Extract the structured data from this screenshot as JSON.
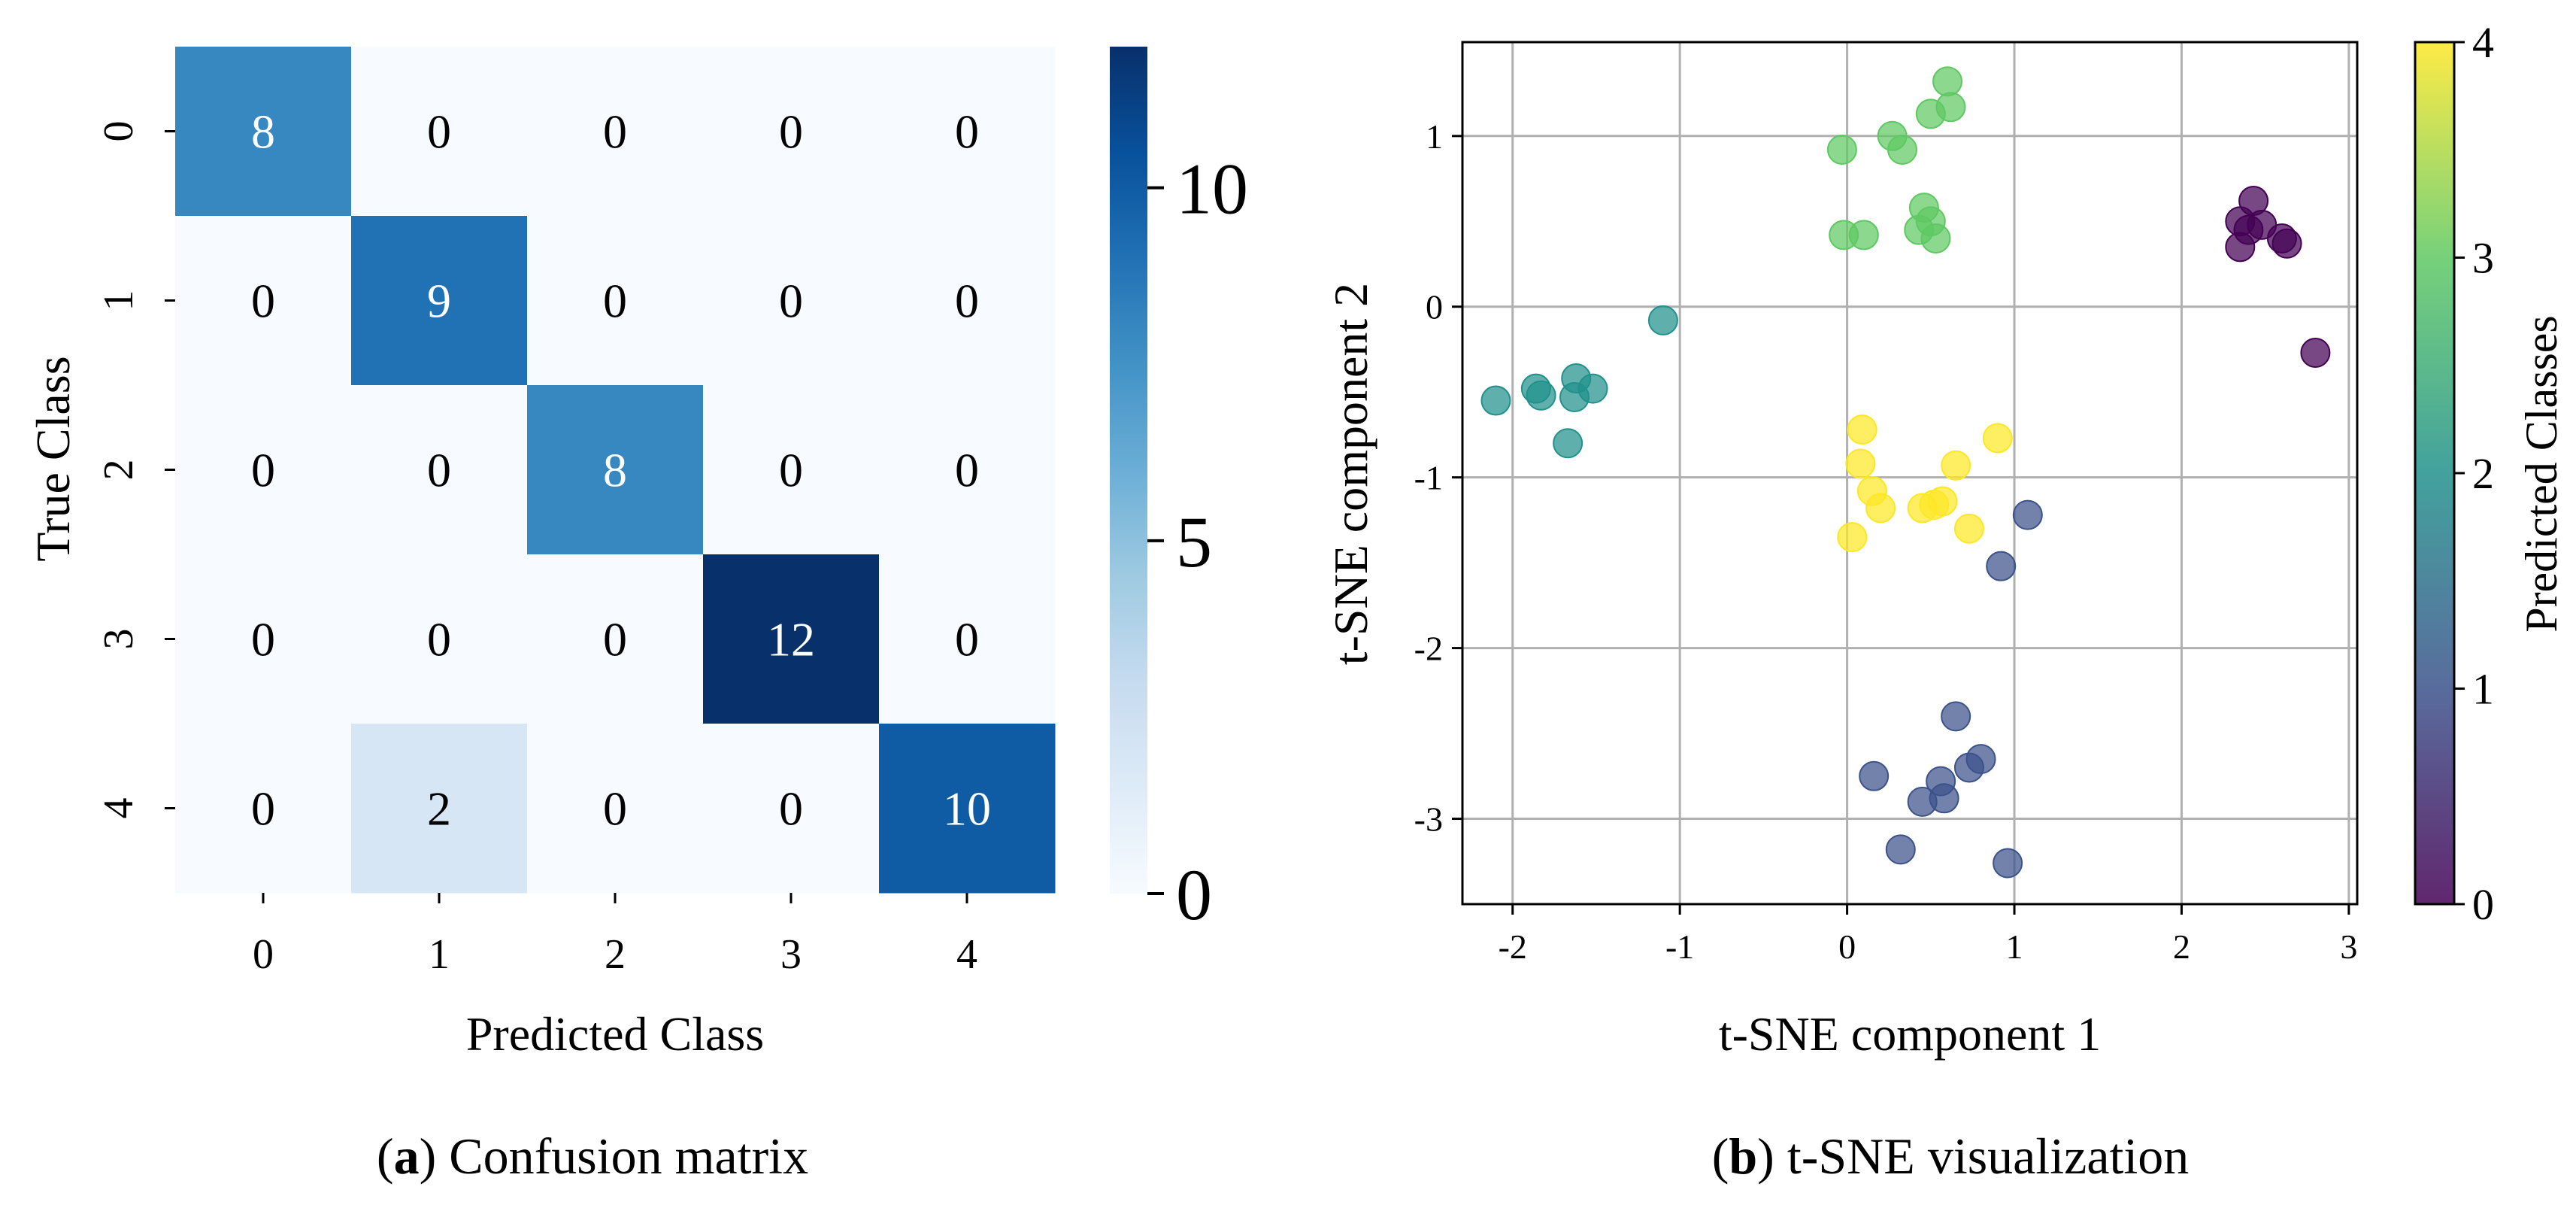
{
  "chart_data": [
    {
      "type": "heatmap",
      "title": "",
      "xlabel": "Predicted Class",
      "ylabel": "True Class",
      "x_categories": [
        "0",
        "1",
        "2",
        "3",
        "4"
      ],
      "y_categories": [
        "0",
        "1",
        "2",
        "3",
        "4"
      ],
      "matrix": [
        [
          8,
          0,
          0,
          0,
          0
        ],
        [
          0,
          9,
          0,
          0,
          0
        ],
        [
          0,
          0,
          8,
          0,
          0
        ],
        [
          0,
          0,
          0,
          12,
          0
        ],
        [
          0,
          2,
          0,
          0,
          10
        ]
      ],
      "colorbar": {
        "min": 0,
        "max": 12,
        "ticks": [
          0,
          5,
          10
        ],
        "tick_labels": [
          "0",
          "5",
          "10"
        ],
        "colormap": "Blues"
      },
      "caption": {
        "letter": "a",
        "text": "Confusion matrix"
      }
    },
    {
      "type": "scatter",
      "title": "",
      "xlabel": "t-SNE component 1",
      "ylabel": "t-SNE component 2",
      "xlim": [
        -2.3,
        3.05
      ],
      "ylim": [
        -3.5,
        1.55
      ],
      "xticks": [
        -2,
        -1,
        0,
        1,
        2,
        3
      ],
      "xtick_labels": [
        "-2",
        "-1",
        "0",
        "1",
        "2",
        "3"
      ],
      "yticks": [
        -3,
        -2,
        -1,
        0,
        1
      ],
      "ytick_labels": [
        "-3",
        "-2",
        "-1",
        "0",
        "1"
      ],
      "grid": true,
      "colorbar": {
        "label": "Predicted Classes",
        "min": 0,
        "max": 4,
        "ticks": [
          0,
          1,
          2,
          3,
          4
        ],
        "tick_labels": [
          "0",
          "1",
          "2",
          "3",
          "4"
        ],
        "colormap": "viridis"
      },
      "series": [
        {
          "name": "0",
          "color": "#440154",
          "points": [
            [
              2.35,
              0.5
            ],
            [
              2.43,
              0.62
            ],
            [
              2.4,
              0.45
            ],
            [
              2.48,
              0.48
            ],
            [
              2.35,
              0.35
            ],
            [
              2.6,
              0.4
            ],
            [
              2.63,
              0.37
            ],
            [
              2.8,
              -0.27
            ]
          ]
        },
        {
          "name": "1",
          "color": "#3b528b",
          "points": [
            [
              0.65,
              -2.4
            ],
            [
              0.16,
              -2.75
            ],
            [
              0.56,
              -2.78
            ],
            [
              0.73,
              -2.7
            ],
            [
              0.8,
              -2.65
            ],
            [
              0.45,
              -2.9
            ],
            [
              0.58,
              -2.88
            ],
            [
              0.32,
              -3.18
            ],
            [
              0.96,
              -3.26
            ],
            [
              1.08,
              -1.22
            ],
            [
              0.92,
              -1.52
            ]
          ]
        },
        {
          "name": "2",
          "color": "#21918c",
          "points": [
            [
              -2.1,
              -0.55
            ],
            [
              -1.86,
              -0.48
            ],
            [
              -1.83,
              -0.52
            ],
            [
              -1.62,
              -0.42
            ],
            [
              -1.63,
              -0.53
            ],
            [
              -1.52,
              -0.48
            ],
            [
              -1.67,
              -0.8
            ],
            [
              -1.1,
              -0.08
            ]
          ]
        },
        {
          "name": "3",
          "color": "#5ec962",
          "points": [
            [
              0.6,
              1.32
            ],
            [
              0.5,
              1.13
            ],
            [
              0.62,
              1.17
            ],
            [
              0.27,
              1.0
            ],
            [
              0.33,
              0.92
            ],
            [
              -0.03,
              0.92
            ],
            [
              0.46,
              0.58
            ],
            [
              0.5,
              0.5
            ],
            [
              0.43,
              0.45
            ],
            [
              0.53,
              0.4
            ],
            [
              -0.02,
              0.42
            ],
            [
              0.1,
              0.42
            ]
          ]
        },
        {
          "name": "4",
          "color": "#fde725",
          "points": [
            [
              0.09,
              -0.72
            ],
            [
              0.08,
              -0.92
            ],
            [
              0.15,
              -1.08
            ],
            [
              0.2,
              -1.18
            ],
            [
              0.52,
              -1.16
            ],
            [
              0.57,
              -1.14
            ],
            [
              0.03,
              -1.35
            ],
            [
              0.45,
              -1.18
            ],
            [
              0.73,
              -1.3
            ],
            [
              0.65,
              -0.93
            ],
            [
              0.9,
              -0.77
            ]
          ]
        }
      ],
      "caption": {
        "letter": "b",
        "text": "t-SNE visualization"
      }
    }
  ]
}
